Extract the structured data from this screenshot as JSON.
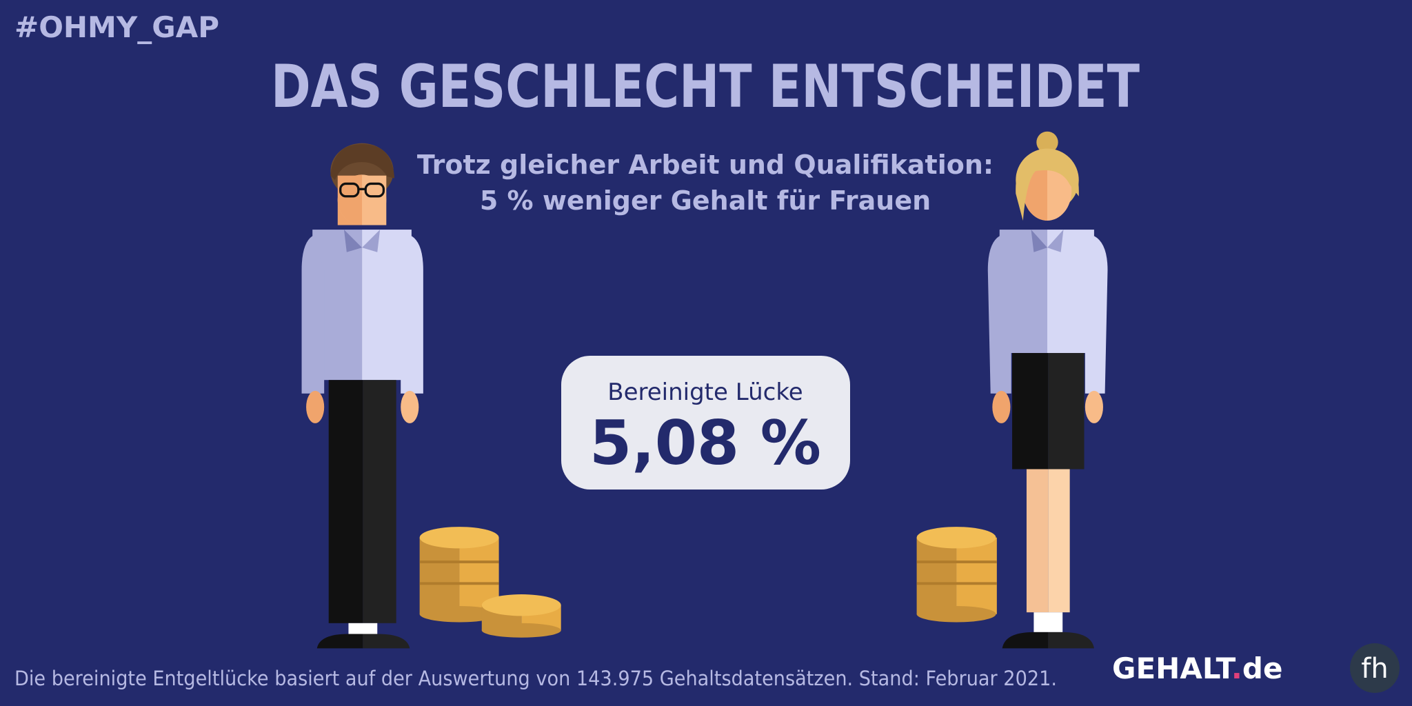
{
  "header": {
    "tag": "#OHMY_GAP",
    "title": "DAS GESCHLECHT ENTSCHEIDET"
  },
  "subtitle": {
    "lines": [
      "Trotz gleicher Arbeit und Qualifikation:",
      "5 % weniger Gehalt für Frauen"
    ]
  },
  "gap_box": {
    "label": "Bereinigte Lücke",
    "value": "5,08 %"
  },
  "footer": {
    "note": "Die bereinigte Entgeltlücke basiert auf der Auswertung von 143.975 Gehaltsdatensätzen. Stand: Februar 2021."
  },
  "logo": {
    "parts": [
      "GEHALT",
      ".",
      "de"
    ],
    "badge": "fh"
  }
}
